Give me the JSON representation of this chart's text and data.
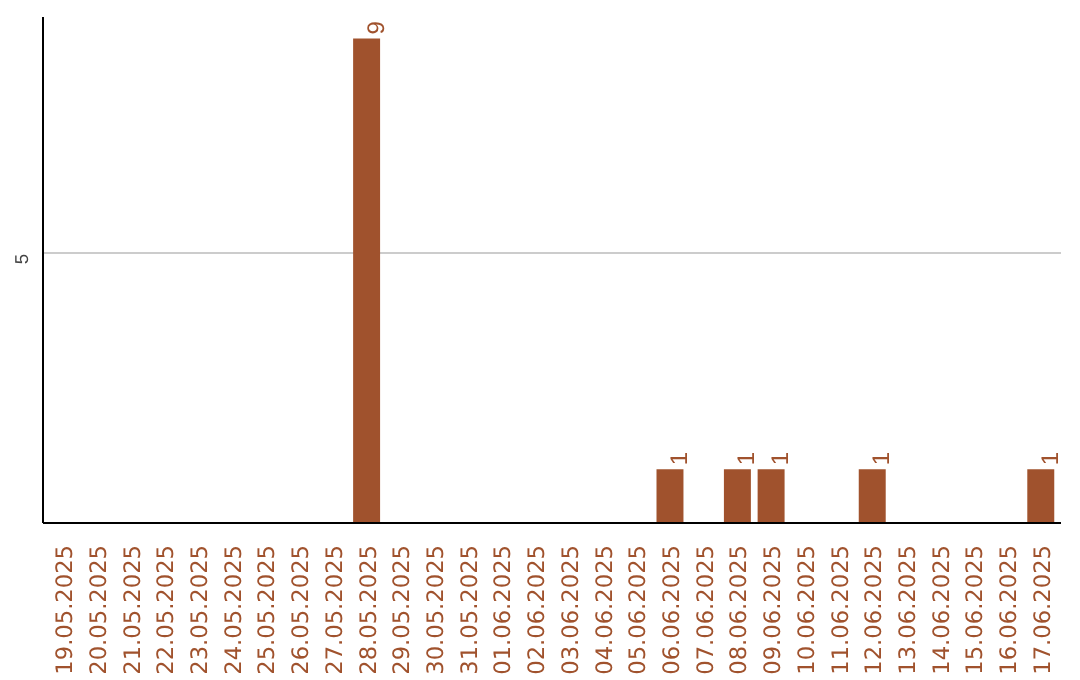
{
  "chart_data": {
    "type": "bar",
    "categories": [
      "19.05.2025",
      "20.05.2025",
      "21.05.2025",
      "22.05.2025",
      "23.05.2025",
      "24.05.2025",
      "25.05.2025",
      "26.05.2025",
      "27.05.2025",
      "28.05.2025",
      "29.05.2025",
      "30.05.2025",
      "31.05.2025",
      "01.06.2025",
      "02.06.2025",
      "03.06.2025",
      "04.06.2025",
      "05.06.2025",
      "06.06.2025",
      "07.06.2025",
      "08.06.2025",
      "09.06.2025",
      "10.06.2025",
      "11.06.2025",
      "12.06.2025",
      "13.06.2025",
      "14.06.2025",
      "15.06.2025",
      "16.06.2025",
      "17.06.2025"
    ],
    "values": [
      0,
      0,
      0,
      0,
      0,
      0,
      0,
      0,
      0,
      9,
      0,
      0,
      0,
      0,
      0,
      0,
      0,
      0,
      1,
      0,
      1,
      1,
      0,
      0,
      1,
      0,
      0,
      0,
      0,
      1
    ],
    "value_labels": [
      null,
      null,
      null,
      null,
      null,
      null,
      null,
      null,
      null,
      "9",
      null,
      null,
      null,
      null,
      null,
      null,
      null,
      null,
      "1",
      null,
      "1",
      "1",
      null,
      null,
      "1",
      null,
      null,
      null,
      null,
      "1"
    ],
    "color": "#a0522d",
    "ylim": [
      0,
      9.4
    ],
    "yticks": [
      5
    ],
    "grid": "y"
  }
}
